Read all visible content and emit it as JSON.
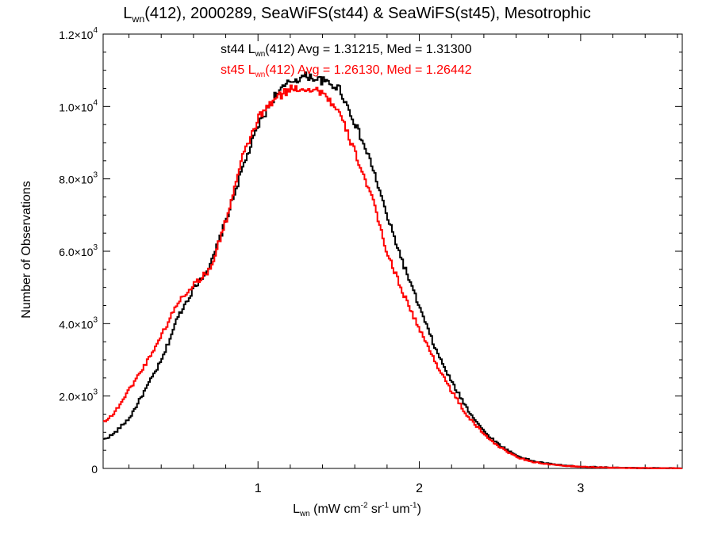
{
  "chart_data": {
    "type": "line",
    "title": {
      "prefix": "L",
      "sub": "wn",
      "suffix": "(412), 2000289, SeaWiFS(st44) & SeaWiFS(st45), Mesotrophic"
    },
    "xlabel": {
      "prefix": "L",
      "sub": "wn",
      "units": " (mW cm",
      "e1": "-2",
      "t2": " sr",
      "e2": "-1",
      "t3": " um",
      "e3": "-1",
      "t4": ")"
    },
    "ylabel": "Number of Observations",
    "xlim": [
      0.04,
      3.63
    ],
    "ylim": [
      0,
      12000
    ],
    "x_ticks": [
      1,
      2,
      3
    ],
    "y_ticks": [
      {
        "mant": "0",
        "exp": ""
      },
      {
        "mant": "2.0×10",
        "exp": "3"
      },
      {
        "mant": "4.0×10",
        "exp": "3"
      },
      {
        "mant": "6.0×10",
        "exp": "3"
      },
      {
        "mant": "8.0×10",
        "exp": "3"
      },
      {
        "mant": "1.0×10",
        "exp": "4"
      },
      {
        "mant": "1.2×10",
        "exp": "4"
      }
    ],
    "y_tick_values": [
      0,
      2000,
      4000,
      6000,
      8000,
      10000,
      12000
    ],
    "grid": false,
    "series": [
      {
        "name": "st44",
        "color": "#000000",
        "stats_label": {
          "pre": "st44 L",
          "sub": "wn",
          "post": "(412) Avg = 1.31215, Med = 1.31300"
        },
        "x": [
          0.04,
          0.1,
          0.2,
          0.3,
          0.4,
          0.5,
          0.6,
          0.7,
          0.8,
          0.9,
          1.0,
          1.1,
          1.2,
          1.3,
          1.4,
          1.5,
          1.6,
          1.7,
          1.8,
          1.9,
          2.0,
          2.1,
          2.2,
          2.3,
          2.4,
          2.5,
          2.6,
          2.7,
          2.8,
          2.9,
          3.0,
          3.2,
          3.4,
          3.63
        ],
        "y": [
          800,
          950,
          1400,
          2200,
          3000,
          4200,
          5000,
          5600,
          6900,
          8300,
          9500,
          10300,
          10700,
          10850,
          10700,
          10500,
          9500,
          8400,
          6900,
          5600,
          4400,
          3250,
          2350,
          1600,
          1000,
          620,
          350,
          200,
          130,
          80,
          50,
          20,
          8,
          3
        ]
      },
      {
        "name": "st45",
        "color": "#ff0000",
        "stats_label": {
          "pre": "st45 L",
          "sub": "wn",
          "post": "(412) Avg = 1.26130, Med = 1.26442"
        },
        "x": [
          0.04,
          0.1,
          0.2,
          0.3,
          0.4,
          0.5,
          0.6,
          0.7,
          0.8,
          0.9,
          1.0,
          1.1,
          1.2,
          1.3,
          1.4,
          1.5,
          1.6,
          1.7,
          1.8,
          1.9,
          2.0,
          2.1,
          2.2,
          2.3,
          2.4,
          2.5,
          2.6,
          2.7,
          2.8,
          2.9,
          3.0,
          3.2,
          3.4,
          3.63
        ],
        "y": [
          1300,
          1500,
          2200,
          2900,
          3700,
          4600,
          5100,
          5500,
          6900,
          8600,
          9700,
          10200,
          10500,
          10500,
          10400,
          9800,
          8700,
          7500,
          5900,
          4800,
          3800,
          2900,
          2100,
          1400,
          930,
          570,
          310,
          180,
          110,
          70,
          45,
          18,
          7,
          2
        ]
      }
    ]
  }
}
